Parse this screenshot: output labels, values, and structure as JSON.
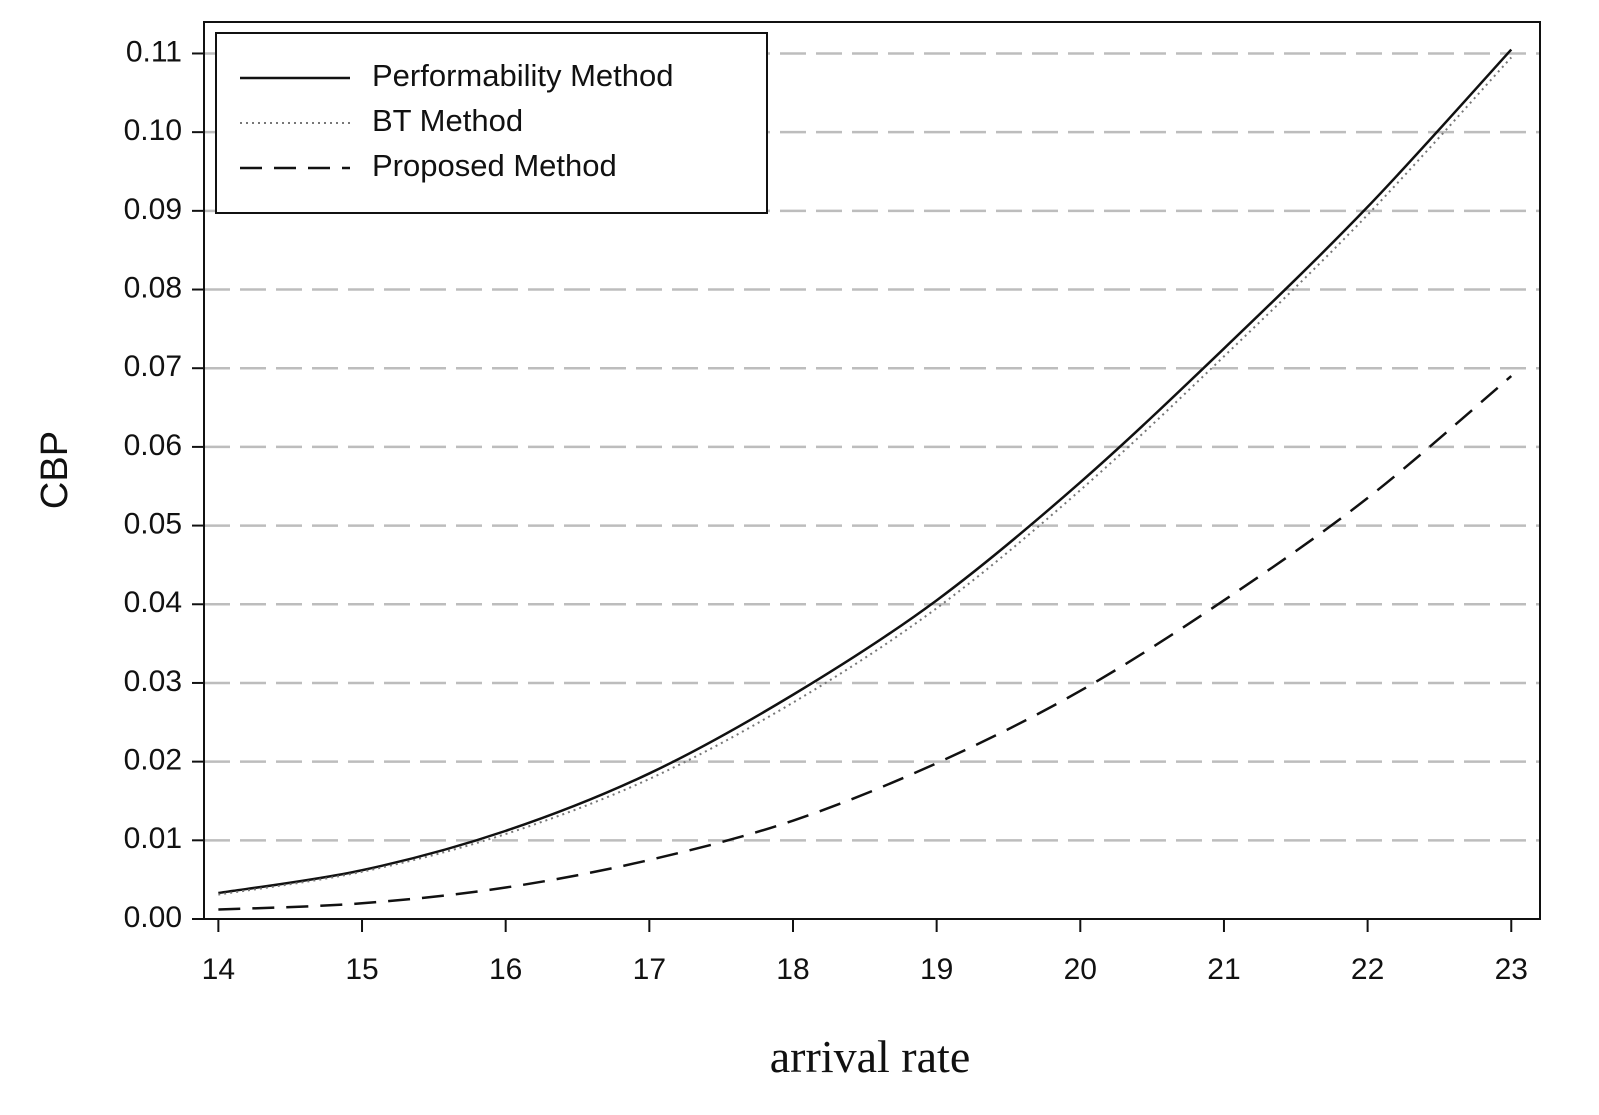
{
  "chart_data": {
    "type": "line",
    "title": "",
    "xlabel": "arrival rate",
    "ylabel": "CBP",
    "xlim": [
      13.9,
      23.2
    ],
    "ylim": [
      0.0,
      0.114
    ],
    "x_ticks": [
      "14",
      "15",
      "16",
      "17",
      "18",
      "19",
      "20",
      "21",
      "22",
      "23"
    ],
    "y_ticks": [
      "0.00",
      "0.01",
      "0.02",
      "0.03",
      "0.04",
      "0.05",
      "0.06",
      "0.07",
      "0.08",
      "0.09",
      "0.10",
      "0.11"
    ],
    "grid": "horizontal-dashed",
    "legend_position": "top-left",
    "x": [
      14,
      15,
      16,
      17,
      18,
      19,
      20,
      21,
      22,
      23
    ],
    "series": [
      {
        "name": "Performability Method",
        "style": "solid",
        "values": [
          0.0033,
          0.0062,
          0.0112,
          0.0185,
          0.0285,
          0.0405,
          0.0555,
          0.0725,
          0.0905,
          0.1105
        ]
      },
      {
        "name": "BT Method",
        "style": "dotted",
        "values": [
          0.0031,
          0.006,
          0.0108,
          0.0178,
          0.0275,
          0.0395,
          0.0545,
          0.0715,
          0.0895,
          0.1095
        ]
      },
      {
        "name": "Proposed Method",
        "style": "dashed",
        "values": [
          0.0012,
          0.002,
          0.004,
          0.0075,
          0.0125,
          0.0198,
          0.029,
          0.0405,
          0.0535,
          0.069
        ]
      }
    ]
  }
}
